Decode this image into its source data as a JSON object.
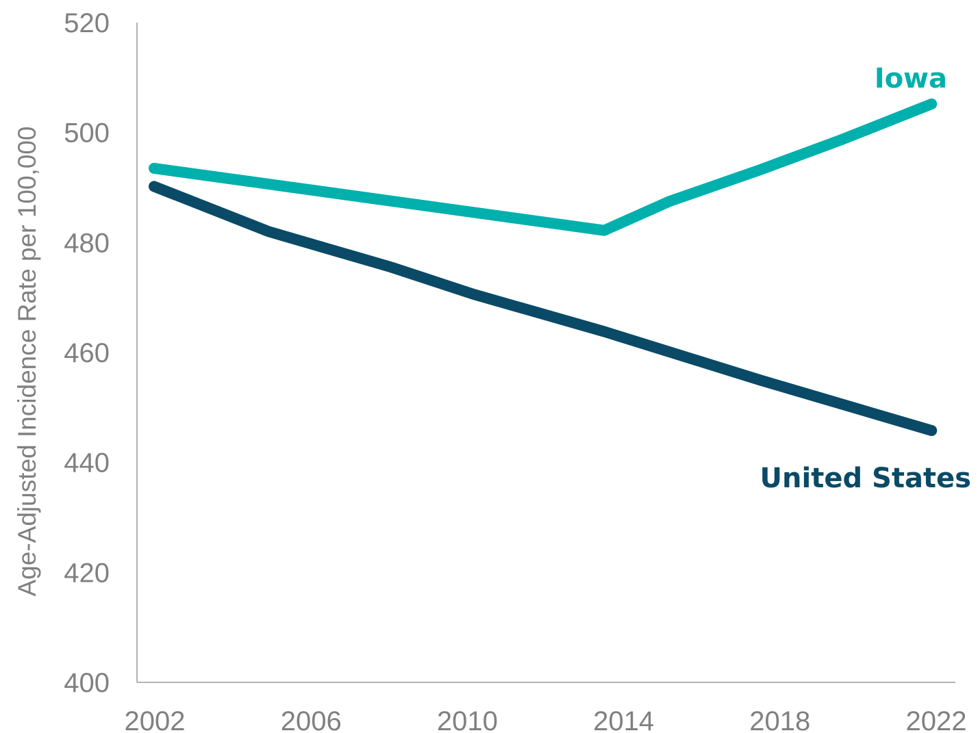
{
  "chart_data": {
    "type": "line",
    "title": "",
    "xlabel": "",
    "ylabel": "Age-Adjusted Incidence Rate per 100,000",
    "xlim": [
      2002,
      2022
    ],
    "ylim": [
      400,
      520
    ],
    "xticks": [
      2002,
      2006,
      2010,
      2014,
      2018,
      2022
    ],
    "yticks": [
      400,
      420,
      440,
      460,
      480,
      500,
      520
    ],
    "grid": false,
    "legend": "direct-labels-at-line-ends",
    "series": [
      {
        "name": "Iowa",
        "color": "#00b0ad",
        "x": [
          2002.2,
          2013.2,
          2014.8,
          2017,
          2019,
          2021.2
        ],
        "y": [
          493.5,
          482.2,
          487.5,
          493.2,
          498.7,
          505.2
        ]
      },
      {
        "name": "United States",
        "color": "#0a4a66",
        "x": [
          2002.2,
          2005,
          2008,
          2010,
          2013.2,
          2017,
          2021.2
        ],
        "y": [
          490.2,
          482.0,
          475.5,
          470.6,
          463.8,
          455.0,
          445.8
        ]
      }
    ]
  }
}
